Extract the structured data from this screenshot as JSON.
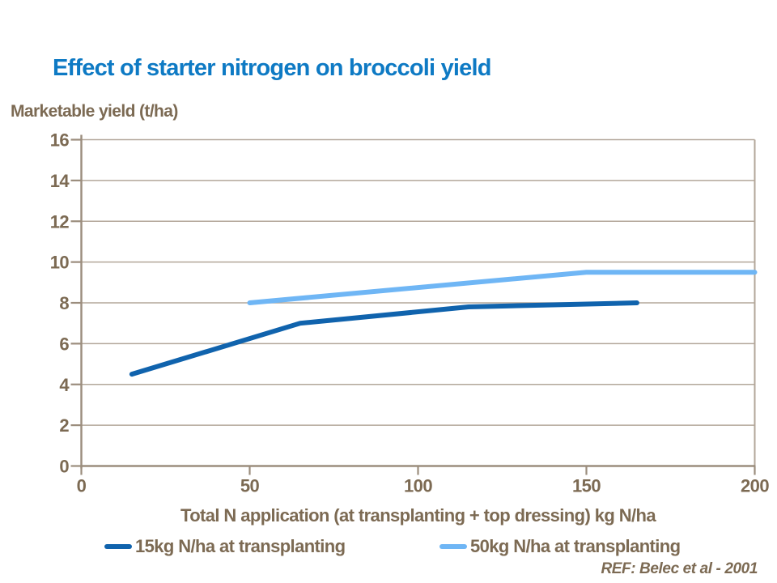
{
  "header": {
    "title": "Effect of starter nitrogen on broccoli yield"
  },
  "footer": {
    "ref": "REF: Belec et al - 2001"
  },
  "colors": {
    "background": "#ffffff",
    "title_blue": "#0e7ac4",
    "text_brown": "#7c6a53",
    "gridline": "#b3a79a",
    "axis": "#9b8d7d",
    "series_dark_blue": "#1063ad",
    "series_light_blue": "#6fb6f5"
  },
  "legend": {
    "items": [
      {
        "label": "15kg N/ha at transplanting",
        "color": "#1063ad"
      },
      {
        "label": "50kg N/ha at transplanting",
        "color": "#6fb6f5"
      }
    ]
  },
  "chart_data": {
    "type": "line",
    "title": "Effect of starter nitrogen on broccoli yield",
    "xlabel": "Total N application (at transplanting + top dressing) kg N/ha",
    "ylabel": "Marketable yield (t/ha)",
    "xlim": [
      0,
      200
    ],
    "ylim": [
      0,
      16
    ],
    "xticks": [
      0,
      50,
      100,
      150,
      200
    ],
    "yticks": [
      0,
      2,
      4,
      6,
      8,
      10,
      12,
      14,
      16
    ],
    "grid": "horizontal",
    "legend_position": "bottom",
    "series": [
      {
        "name": "15kg N/ha at transplanting",
        "color": "#1063ad",
        "points": [
          [
            15,
            4.5
          ],
          [
            65,
            7.0
          ],
          [
            115,
            7.8
          ],
          [
            165,
            8.0
          ]
        ]
      },
      {
        "name": "50kg N/ha at transplanting",
        "color": "#6fb6f5",
        "points": [
          [
            50,
            8.0
          ],
          [
            150,
            9.5
          ],
          [
            200,
            9.5
          ]
        ]
      }
    ]
  }
}
